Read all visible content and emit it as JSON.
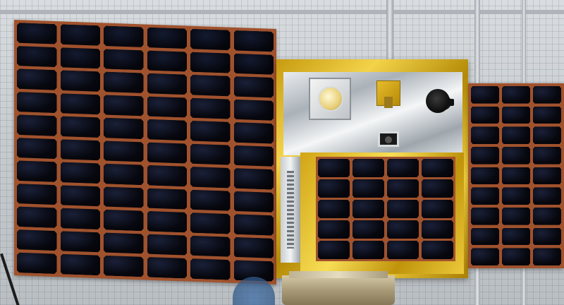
{
  "scene": {
    "left_wing": {
      "rows": 11,
      "cols": 6
    },
    "right_wing": {
      "rows": 9,
      "cols": 3
    },
    "body_solar": {
      "rows": 5,
      "cols": 4
    }
  },
  "colors": {
    "solar_cell": "#07080f",
    "cell_border": "#a0522d",
    "gold_foil": "#e8c233",
    "silver_foil": "#c9ced3",
    "background": "#cfd3d6"
  },
  "icons": {
    "sun_sensor": "sensor-square-icon",
    "star_tracker": "round-lens-icon",
    "camera": "camera-icon"
  }
}
